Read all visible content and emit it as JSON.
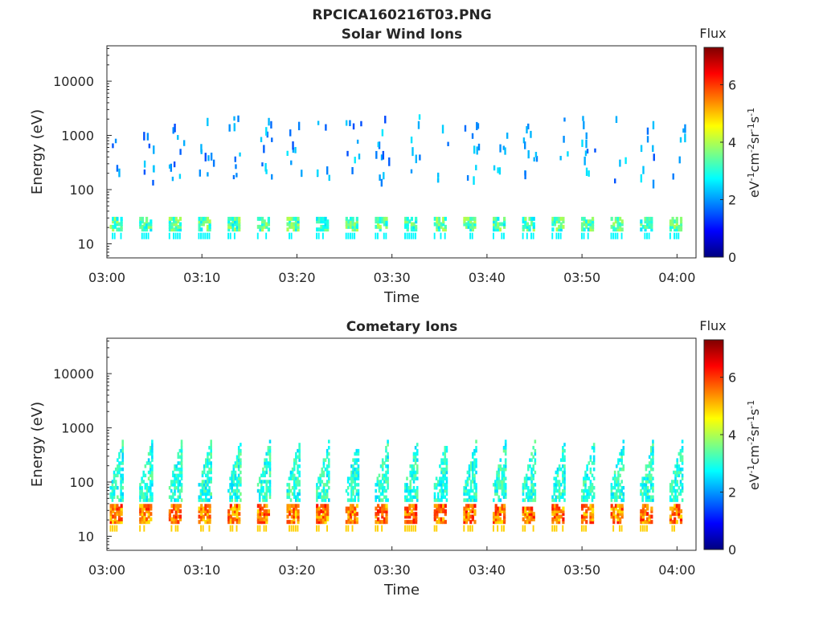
{
  "figure": {
    "filename": "RPCICA160216T03.PNG"
  },
  "chart_data": [
    {
      "type": "heatmap",
      "title": "Solar Wind Ions",
      "xlabel": "Time",
      "ylabel": "Energy (eV)",
      "y_scale": "log",
      "ylim": [
        5.5,
        45000
      ],
      "x_ticks": [
        "03:00",
        "03:10",
        "03:20",
        "03:30",
        "03:40",
        "03:50",
        "04:00"
      ],
      "y_ticks": [
        "10",
        "100",
        "1000",
        "10000"
      ],
      "colorbar": {
        "title": "Flux",
        "label": "eV-1cm-2sr-1s-1",
        "ticks": [
          "0",
          "2",
          "4",
          "6"
        ],
        "range": [
          0,
          7.3
        ],
        "colormap": "jet"
      },
      "burst_period_min": 3.1,
      "dominant_energy_band_eV": [
        20,
        35
      ],
      "typical_flux_in_band": 3.3,
      "upper_energy_population_eV": [
        150,
        2500
      ],
      "typical_flux_upper": 2.0
    },
    {
      "type": "heatmap",
      "title": "Cometary Ions",
      "xlabel": "Time",
      "ylabel": "Energy (eV)",
      "y_scale": "log",
      "ylim": [
        5.5,
        45000
      ],
      "x_ticks": [
        "03:00",
        "03:10",
        "03:20",
        "03:30",
        "03:40",
        "03:50",
        "04:00"
      ],
      "y_ticks": [
        "10",
        "100",
        "1000",
        "10000"
      ],
      "colorbar": {
        "title": "Flux",
        "label": "eV-1cm-2sr-1s-1",
        "ticks": [
          "0",
          "2",
          "4",
          "6"
        ],
        "range": [
          0,
          7.3
        ],
        "colormap": "jet"
      },
      "burst_period_min": 3.1,
      "dominant_energy_band_eV": [
        20,
        40
      ],
      "typical_flux_in_band": 5.5,
      "dispersed_population_eV": [
        50,
        800
      ],
      "typical_flux_dispersed": 3.0
    }
  ]
}
